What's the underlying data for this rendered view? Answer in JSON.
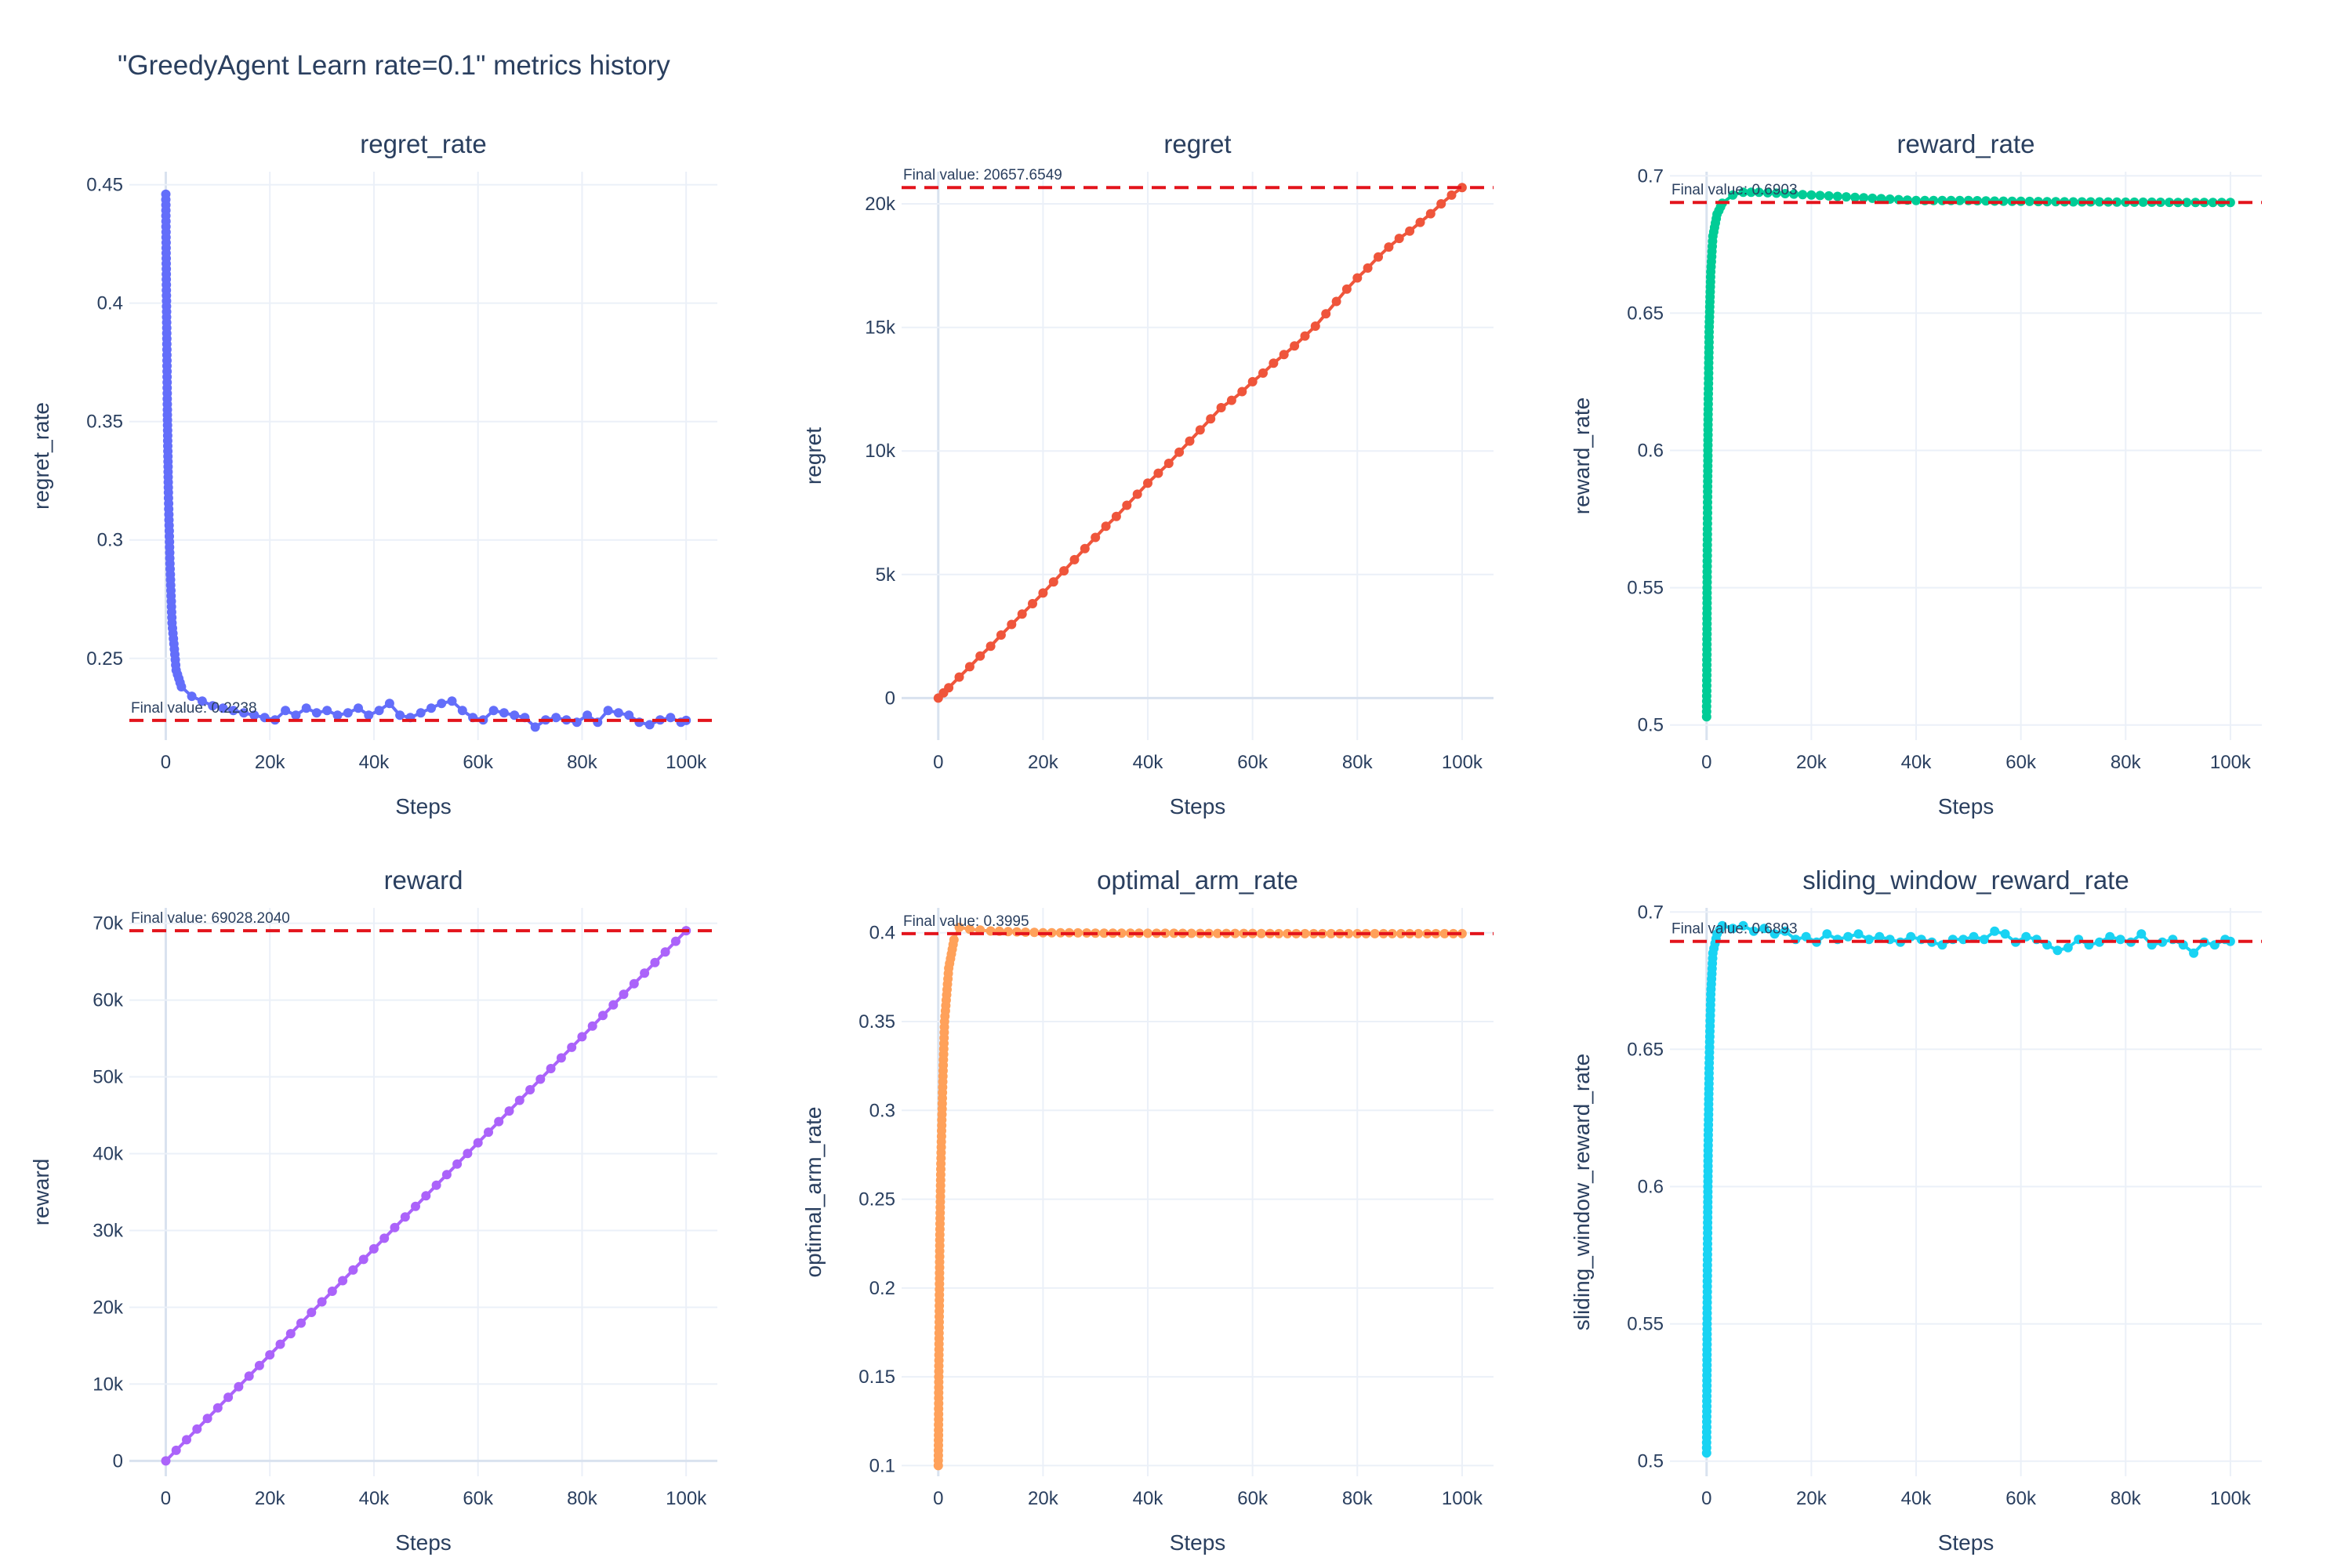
{
  "title": "\"GreedyAgent Learn rate=0.1\" metrics history",
  "colors": {
    "final_line": "#e3141c",
    "grid": "#ebf0f8",
    "zero_line": "#d9e2ef",
    "text": "#2a3f5f"
  },
  "chart_data": [
    {
      "type": "line",
      "title": "regret_rate",
      "xlabel": "Steps",
      "ylabel": "regret_rate",
      "color": "#636efa",
      "xlim": [
        -7000,
        106000
      ],
      "ylim": [
        0.2155,
        0.4555
      ],
      "xticks": [
        0,
        20000,
        40000,
        60000,
        80000,
        100000
      ],
      "xtick_labels": [
        "0",
        "20k",
        "40k",
        "60k",
        "80k",
        "100k"
      ],
      "yticks": [
        0.25,
        0.3,
        0.35,
        0.4,
        0.45
      ],
      "ytick_labels": [
        "0.25",
        "0.3",
        "0.35",
        "0.4",
        "0.45"
      ],
      "final_value": 0.2238,
      "final_label": "Final value: 0.2238",
      "series": [
        {
          "x": [
            0,
            50,
            100,
            200,
            300,
            500,
            800,
            1200,
            2000,
            3000,
            5000,
            7000,
            9000,
            11000,
            13000,
            15000,
            17000,
            19000,
            21000,
            23000,
            25000,
            27000,
            29000,
            31000,
            33000,
            35000,
            37000,
            39000,
            41000,
            43000,
            45000,
            47000,
            49000,
            51000,
            53000,
            55000,
            57000,
            59000,
            61000,
            63000,
            65000,
            67000,
            69000,
            71000,
            73000,
            75000,
            77000,
            79000,
            81000,
            83000,
            85000,
            87000,
            89000,
            91000,
            93000,
            95000,
            97000,
            99000,
            100000
          ],
          "y": [
            0.446,
            0.43,
            0.41,
            0.385,
            0.355,
            0.32,
            0.29,
            0.265,
            0.245,
            0.238,
            0.234,
            0.232,
            0.23,
            0.229,
            0.228,
            0.227,
            0.226,
            0.225,
            0.224,
            0.228,
            0.226,
            0.229,
            0.227,
            0.228,
            0.226,
            0.227,
            0.229,
            0.226,
            0.228,
            0.231,
            0.226,
            0.225,
            0.227,
            0.229,
            0.231,
            0.232,
            0.228,
            0.225,
            0.224,
            0.228,
            0.227,
            0.226,
            0.225,
            0.221,
            0.224,
            0.225,
            0.224,
            0.223,
            0.226,
            0.223,
            0.228,
            0.227,
            0.226,
            0.223,
            0.222,
            0.224,
            0.225,
            0.223,
            0.2238
          ]
        }
      ]
    },
    {
      "type": "line",
      "title": "regret",
      "xlabel": "Steps",
      "ylabel": "regret",
      "color": "#ef553b",
      "xlim": [
        -7000,
        106000
      ],
      "ylim": [
        -1700,
        21300
      ],
      "xticks": [
        0,
        20000,
        40000,
        60000,
        80000,
        100000
      ],
      "xtick_labels": [
        "0",
        "20k",
        "40k",
        "60k",
        "80k",
        "100k"
      ],
      "yticks": [
        0,
        5000,
        10000,
        15000,
        20000
      ],
      "ytick_labels": [
        "0",
        "5k",
        "10k",
        "15k",
        "20k"
      ],
      "final_value": 20657.6549,
      "final_label": "Final value: 20657.6549",
      "series": [
        {
          "x": [
            0,
            2000,
            4000,
            6000,
            8000,
            10000,
            12000,
            14000,
            16000,
            18000,
            20000,
            22000,
            24000,
            26000,
            28000,
            30000,
            32000,
            34000,
            36000,
            38000,
            40000,
            42000,
            44000,
            46000,
            48000,
            50000,
            52000,
            54000,
            56000,
            58000,
            60000,
            62000,
            64000,
            66000,
            68000,
            70000,
            72000,
            74000,
            76000,
            78000,
            80000,
            82000,
            84000,
            86000,
            88000,
            90000,
            92000,
            94000,
            96000,
            98000,
            100000
          ],
          "y": [
            0,
            420,
            850,
            1270,
            1700,
            2100,
            2550,
            2980,
            3400,
            3820,
            4250,
            4700,
            5150,
            5600,
            6050,
            6500,
            6950,
            7350,
            7800,
            8250,
            8700,
            9100,
            9500,
            9950,
            10400,
            10850,
            11300,
            11750,
            12050,
            12400,
            12800,
            13150,
            13550,
            13900,
            14250,
            14650,
            15050,
            15550,
            16050,
            16550,
            17000,
            17400,
            17850,
            18250,
            18600,
            18900,
            19250,
            19600,
            20000,
            20350,
            20657.6549
          ]
        }
      ]
    },
    {
      "type": "line",
      "title": "reward_rate",
      "xlabel": "Steps",
      "ylabel": "reward_rate",
      "color": "#00cc96",
      "xlim": [
        -7000,
        106000
      ],
      "ylim": [
        0.4945,
        0.7015
      ],
      "xticks": [
        0,
        20000,
        40000,
        60000,
        80000,
        100000
      ],
      "xtick_labels": [
        "0",
        "20k",
        "40k",
        "60k",
        "80k",
        "100k"
      ],
      "yticks": [
        0.5,
        0.55,
        0.6,
        0.65,
        0.7
      ],
      "ytick_labels": [
        "0.5",
        "0.55",
        "0.6",
        "0.65",
        "0.7"
      ],
      "final_value": 0.6903,
      "final_label": "Final value: 0.6903",
      "series": [
        {
          "x": [
            0,
            50,
            100,
            200,
            300,
            500,
            800,
            1200,
            2000,
            3000,
            5000,
            7000,
            10000,
            15000,
            20000,
            25000,
            30000,
            35000,
            40000,
            45000,
            50000,
            55000,
            60000,
            65000,
            70000,
            75000,
            80000,
            85000,
            90000,
            95000,
            100000
          ],
          "y": [
            0.503,
            0.52,
            0.55,
            0.585,
            0.615,
            0.645,
            0.665,
            0.678,
            0.686,
            0.69,
            0.693,
            0.694,
            0.694,
            0.6935,
            0.693,
            0.6925,
            0.692,
            0.6915,
            0.691,
            0.691,
            0.691,
            0.6908,
            0.6907,
            0.6906,
            0.6905,
            0.6905,
            0.6904,
            0.6904,
            0.6903,
            0.6903,
            0.6903
          ]
        }
      ]
    },
    {
      "type": "line",
      "title": "reward",
      "xlabel": "Steps",
      "ylabel": "reward",
      "color": "#ab63fa",
      "xlim": [
        -7000,
        106000
      ],
      "ylim": [
        -2000,
        72000
      ],
      "xticks": [
        0,
        20000,
        40000,
        60000,
        80000,
        100000
      ],
      "xtick_labels": [
        "0",
        "20k",
        "40k",
        "60k",
        "80k",
        "100k"
      ],
      "yticks": [
        0,
        10000,
        20000,
        30000,
        40000,
        50000,
        60000,
        70000
      ],
      "ytick_labels": [
        "0",
        "10k",
        "20k",
        "30k",
        "40k",
        "50k",
        "60k",
        "70k"
      ],
      "final_value": 69028.204,
      "final_label": "Final value: 69028.2040",
      "series": [
        {
          "x": [
            0,
            100000
          ],
          "y": [
            0,
            69028.204
          ]
        }
      ]
    },
    {
      "type": "line",
      "title": "optimal_arm_rate",
      "xlabel": "Steps",
      "ylabel": "optimal_arm_rate",
      "color": "#ffa15a",
      "xlim": [
        -7000,
        106000
      ],
      "ylim": [
        0.094,
        0.414
      ],
      "xticks": [
        0,
        20000,
        40000,
        60000,
        80000,
        100000
      ],
      "xtick_labels": [
        "0",
        "20k",
        "40k",
        "60k",
        "80k",
        "100k"
      ],
      "yticks": [
        0.1,
        0.15,
        0.2,
        0.25,
        0.3,
        0.35,
        0.4
      ],
      "ytick_labels": [
        "0.1",
        "0.15",
        "0.2",
        "0.25",
        "0.3",
        "0.35",
        "0.4"
      ],
      "final_value": 0.3995,
      "final_label": "Final value: 0.3995",
      "series": [
        {
          "x": [
            0,
            50,
            100,
            200,
            300,
            500,
            800,
            1200,
            2000,
            3000,
            4000,
            6000,
            10000,
            15000,
            20000,
            25000,
            30000,
            35000,
            40000,
            45000,
            50000,
            55000,
            60000,
            65000,
            70000,
            75000,
            80000,
            85000,
            90000,
            95000,
            100000
          ],
          "y": [
            0.1,
            0.12,
            0.15,
            0.19,
            0.23,
            0.27,
            0.31,
            0.35,
            0.38,
            0.396,
            0.403,
            0.402,
            0.401,
            0.4005,
            0.4,
            0.4,
            0.3998,
            0.3998,
            0.3997,
            0.3997,
            0.3996,
            0.3996,
            0.3996,
            0.3995,
            0.3995,
            0.3995,
            0.3995,
            0.3995,
            0.3995,
            0.3995,
            0.3995
          ]
        }
      ]
    },
    {
      "type": "line",
      "title": "sliding_window_reward_rate",
      "xlabel": "Steps",
      "ylabel": "sliding_window_reward_rate",
      "color": "#19d3f3",
      "xlim": [
        -7000,
        106000
      ],
      "ylim": [
        0.4945,
        0.7015
      ],
      "xticks": [
        0,
        20000,
        40000,
        60000,
        80000,
        100000
      ],
      "xtick_labels": [
        "0",
        "20k",
        "40k",
        "60k",
        "80k",
        "100k"
      ],
      "yticks": [
        0.5,
        0.55,
        0.6,
        0.65,
        0.7
      ],
      "ytick_labels": [
        "0.5",
        "0.55",
        "0.6",
        "0.65",
        "0.7"
      ],
      "final_value": 0.6893,
      "final_label": "Final value: 0.6893",
      "series": [
        {
          "x": [
            0,
            50,
            100,
            200,
            300,
            500,
            800,
            1200,
            2000,
            3000,
            5000,
            7000,
            9000,
            11000,
            13000,
            15000,
            17000,
            19000,
            21000,
            23000,
            25000,
            27000,
            29000,
            31000,
            33000,
            35000,
            37000,
            39000,
            41000,
            43000,
            45000,
            47000,
            49000,
            51000,
            53000,
            55000,
            57000,
            59000,
            61000,
            63000,
            65000,
            67000,
            69000,
            71000,
            73000,
            75000,
            77000,
            79000,
            81000,
            83000,
            85000,
            87000,
            89000,
            91000,
            93000,
            95000,
            97000,
            99000,
            100000
          ],
          "y": [
            0.503,
            0.52,
            0.55,
            0.585,
            0.615,
            0.645,
            0.67,
            0.685,
            0.692,
            0.695,
            0.694,
            0.695,
            0.693,
            0.694,
            0.692,
            0.693,
            0.69,
            0.691,
            0.689,
            0.692,
            0.69,
            0.691,
            0.692,
            0.69,
            0.691,
            0.69,
            0.689,
            0.691,
            0.69,
            0.689,
            0.688,
            0.69,
            0.69,
            0.691,
            0.69,
            0.693,
            0.692,
            0.689,
            0.691,
            0.69,
            0.688,
            0.686,
            0.687,
            0.69,
            0.688,
            0.689,
            0.691,
            0.69,
            0.689,
            0.692,
            0.688,
            0.689,
            0.69,
            0.688,
            0.685,
            0.689,
            0.688,
            0.69,
            0.6893
          ]
        }
      ]
    }
  ]
}
